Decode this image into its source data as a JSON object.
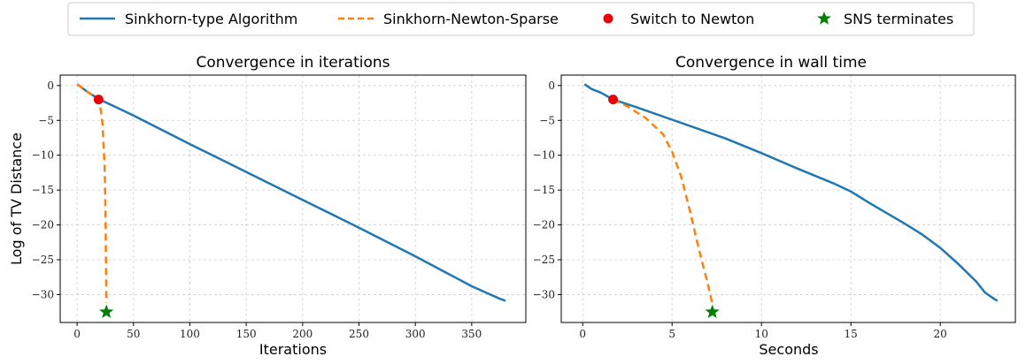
{
  "legend": {
    "items": [
      {
        "label": "Sinkhorn-type Algorithm",
        "style": "line",
        "color": "#1f77b4"
      },
      {
        "label": "Sinkhorn-Newton-Sparse",
        "style": "dashed",
        "color": "#ff7f0e"
      },
      {
        "label": "Switch to Newton",
        "style": "dot",
        "color": "#e8000b"
      },
      {
        "label": "SNS terminates",
        "style": "star",
        "color": "#008000"
      }
    ]
  },
  "chart_data": [
    {
      "type": "line",
      "title": "Convergence in iterations",
      "xlabel": "Iterations",
      "ylabel": "Log of TV Distance",
      "xlim": [
        -15,
        398
      ],
      "ylim": [
        -34,
        1.5
      ],
      "xticks": [
        0,
        50,
        100,
        150,
        200,
        250,
        300,
        350
      ],
      "yticks": [
        0,
        -5,
        -10,
        -15,
        -20,
        -25,
        -30
      ],
      "grid": true,
      "series": [
        {
          "name": "Sinkhorn-type Algorithm",
          "color": "#1f77b4",
          "dash": false,
          "x": [
            0,
            5,
            10,
            15,
            20,
            50,
            100,
            150,
            200,
            250,
            300,
            350,
            375,
            380
          ],
          "y": [
            0.2,
            -0.4,
            -1.0,
            -1.5,
            -2.0,
            -4.3,
            -8.4,
            -12.4,
            -16.4,
            -20.4,
            -24.5,
            -28.8,
            -30.6,
            -30.9
          ]
        },
        {
          "name": "Sinkhorn-Newton-Sparse",
          "color": "#ff7f0e",
          "dash": true,
          "x": [
            0,
            5,
            10,
            15,
            19,
            21,
            22.5,
            23.5,
            24.5,
            25,
            25.3,
            25.6,
            26
          ],
          "y": [
            0.2,
            -0.4,
            -1.0,
            -1.5,
            -2.0,
            -3.5,
            -5.5,
            -8.5,
            -12,
            -16,
            -20,
            -25,
            -31.2
          ]
        }
      ],
      "markers": [
        {
          "name": "Switch to Newton",
          "shape": "dot",
          "color": "#e8000b",
          "x": 19,
          "y": -2.0
        },
        {
          "name": "SNS terminates",
          "shape": "star",
          "color": "#008000",
          "x": 26,
          "y": -32.5
        }
      ]
    },
    {
      "type": "line",
      "title": "Convergence in wall time",
      "xlabel": "Seconds",
      "ylabel": "",
      "xlim": [
        -1.2,
        24.2
      ],
      "ylim": [
        -34,
        1.5
      ],
      "xticks": [
        0,
        5,
        10,
        15,
        20
      ],
      "yticks": [
        0,
        -5,
        -10,
        -15,
        -20,
        -25,
        -30
      ],
      "grid": true,
      "series": [
        {
          "name": "Sinkhorn-type Algorithm",
          "color": "#1f77b4",
          "dash": false,
          "x": [
            0.1,
            0.5,
            1.0,
            1.7,
            3,
            5,
            7,
            8,
            10,
            12,
            14,
            15,
            16,
            17,
            18,
            19,
            20,
            21,
            22,
            22.5,
            23,
            23.2
          ],
          "y": [
            0.2,
            -0.5,
            -1.0,
            -2.0,
            -3.1,
            -4.9,
            -6.7,
            -7.6,
            -9.7,
            -11.9,
            -14.0,
            -15.2,
            -16.8,
            -18.3,
            -19.8,
            -21.4,
            -23.3,
            -25.6,
            -28.1,
            -29.7,
            -30.6,
            -30.9
          ]
        },
        {
          "name": "Sinkhorn-Newton-Sparse",
          "color": "#ff7f0e",
          "dash": true,
          "x": [
            1.7,
            2.5,
            3.5,
            4.5,
            5.0,
            5.5,
            6.0,
            6.5,
            7.0,
            7.25
          ],
          "y": [
            -2.0,
            -3.0,
            -4.6,
            -7.0,
            -9.5,
            -13.0,
            -18.0,
            -23.5,
            -28.5,
            -31.3
          ]
        }
      ],
      "markers": [
        {
          "name": "Switch to Newton",
          "shape": "dot",
          "color": "#e8000b",
          "x": 1.7,
          "y": -2.0
        },
        {
          "name": "SNS terminates",
          "shape": "star",
          "color": "#008000",
          "x": 7.25,
          "y": -32.5
        }
      ]
    }
  ]
}
